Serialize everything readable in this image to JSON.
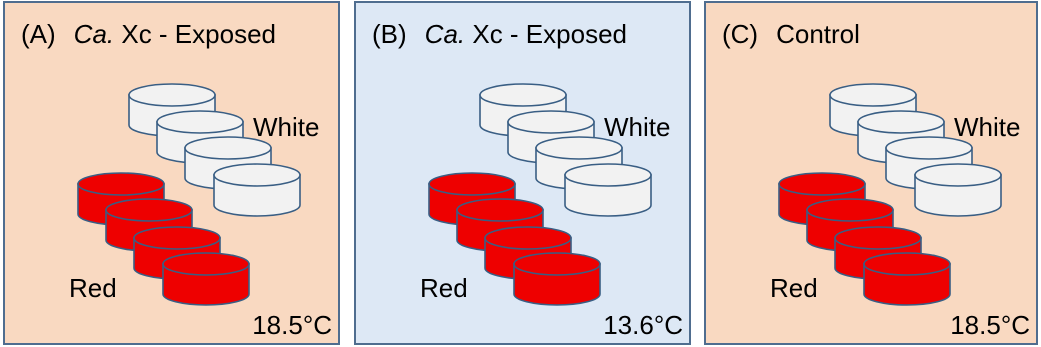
{
  "colors": {
    "peach_background": "#f9d9c1",
    "blue_background": "#dde8f5",
    "panel_border": "#4f6d8f",
    "red_dish": "#ee0000",
    "white_dish": "#f2f2f2",
    "dish_outline": "#395e84"
  },
  "panels": [
    {
      "letter": "(A)",
      "species": "Ca.",
      "rest": " Xc - Exposed",
      "white_label": "White",
      "red_label": "Red",
      "temperature": "18.5°C",
      "background": "peach"
    },
    {
      "letter": "(B)",
      "species": "Ca.",
      "rest": " Xc - Exposed",
      "white_label": "White",
      "red_label": "Red",
      "temperature": "13.6°C",
      "background": "blue"
    },
    {
      "letter": "(C)",
      "species": "",
      "rest": "Control",
      "white_label": "White",
      "red_label": "Red",
      "temperature": "18.5°C",
      "background": "peach"
    }
  ]
}
